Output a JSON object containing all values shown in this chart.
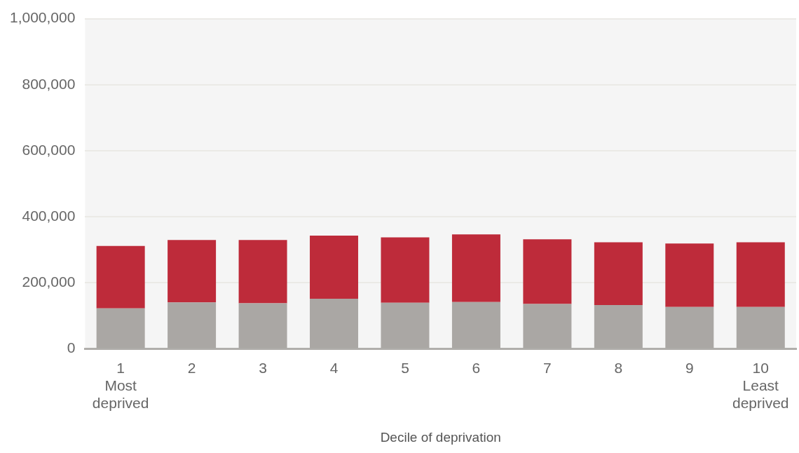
{
  "chart_data": {
    "type": "bar",
    "xlabel": "Decile of deprivation",
    "categories": [
      "1 Most deprived",
      "2",
      "3",
      "4",
      "5",
      "6",
      "7",
      "8",
      "9",
      "10 Least deprived"
    ],
    "stacked": true,
    "series": [
      {
        "color": "#aaa7a4",
        "values": [
          123000,
          141000,
          138000,
          152000,
          140000,
          142000,
          136000,
          133000,
          127000,
          127000
        ]
      },
      {
        "color": "#be2b3a",
        "values": [
          189000,
          189000,
          192000,
          191000,
          198000,
          205000,
          196000,
          190000,
          192000,
          196000
        ]
      }
    ],
    "ylim": [
      0,
      1000000
    ],
    "yticks": [
      {
        "value": 0,
        "label": "0"
      },
      {
        "value": 200000,
        "label": "200,000"
      },
      {
        "value": 400000,
        "label": "400,000"
      },
      {
        "value": 600000,
        "label": "600,000"
      },
      {
        "value": 800000,
        "label": "800,000"
      },
      {
        "value": 1000000,
        "label": "1,000,000"
      }
    ],
    "grid": "y",
    "legend": false
  }
}
